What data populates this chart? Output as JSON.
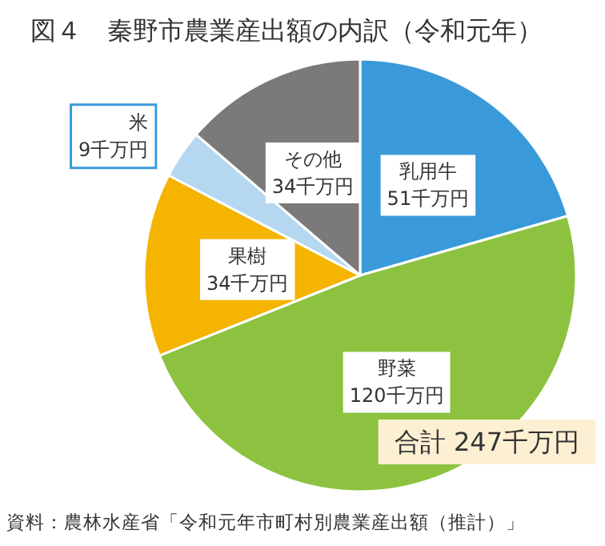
{
  "chart_data": {
    "type": "pie",
    "title": "図４　秦野市農業産出額の内訳（令和元年）",
    "categories": [
      "乳用牛",
      "野菜",
      "果樹",
      "米",
      "その他"
    ],
    "values": [
      51,
      120,
      34,
      9,
      34
    ],
    "value_labels": [
      "51千万円",
      "120千万円",
      "34千万円",
      "9千万円",
      "34千万円"
    ],
    "colors": [
      "#3a9ad9",
      "#8cc23f",
      "#f5b400",
      "#b5d8f0",
      "#7a7a7a"
    ],
    "annotations": [
      "合計 247千万円",
      "資料：農林水産省「令和元年市町村別農業産出額（推計）」"
    ],
    "legend": false
  }
}
